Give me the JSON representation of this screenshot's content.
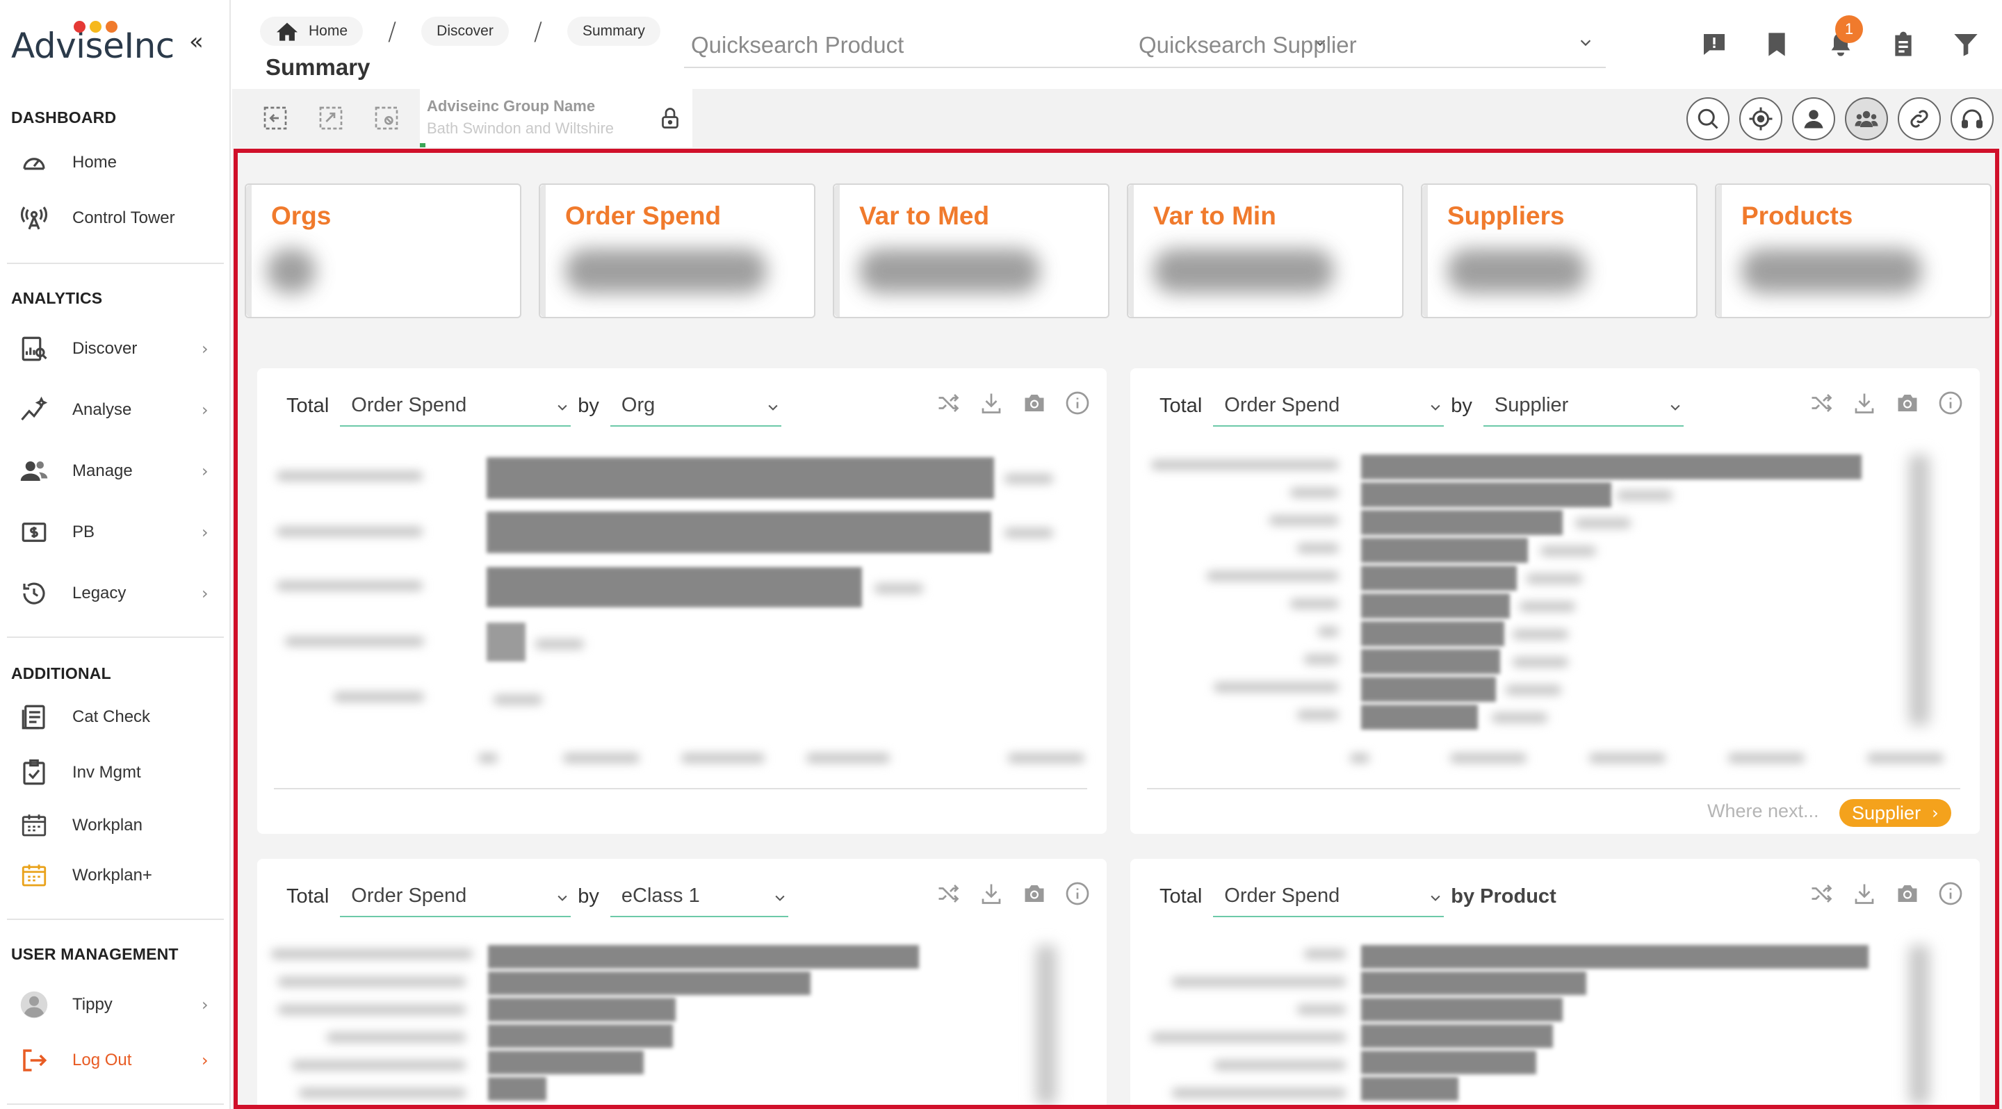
{
  "brand": {
    "name": "AdviseInc",
    "dot_colors": [
      "#e53935",
      "#f6b81c",
      "#f07a2c"
    ]
  },
  "sidebar": {
    "collapse_glyph": "«",
    "sections": {
      "dashboard": "DASHBOARD",
      "analytics": "ANALYTICS",
      "additional": "ADDITIONAL",
      "user_management": "USER MANAGEMENT"
    },
    "items": {
      "home": {
        "label": "Home",
        "icon": "gauge-icon"
      },
      "control_tower": {
        "label": "Control Tower",
        "icon": "antenna-icon"
      },
      "discover": {
        "label": "Discover",
        "icon": "chart-search-icon"
      },
      "analyse": {
        "label": "Analyse",
        "icon": "trend-sparkle-icon"
      },
      "manage": {
        "label": "Manage",
        "icon": "users-icon"
      },
      "pb": {
        "label": "PB",
        "icon": "dollar-box-icon"
      },
      "legacy": {
        "label": "Legacy",
        "icon": "history-icon"
      },
      "cat_check": {
        "label": "Cat Check",
        "icon": "catalogue-icon"
      },
      "inv_mgmt": {
        "label": "Inv Mgmt",
        "icon": "clipboard-check-icon"
      },
      "workplan": {
        "label": "Workplan",
        "icon": "calendar-icon"
      },
      "workplan_plus": {
        "label": "Workplan+",
        "icon": "calendar-plus-icon"
      },
      "tippy": {
        "label": "Tippy",
        "icon": "avatar-icon"
      },
      "logout": {
        "label": "Log Out",
        "icon": "logout-icon"
      }
    },
    "chevron": "›"
  },
  "header": {
    "breadcrumb": [
      "Home",
      "Discover",
      "Summary"
    ],
    "breadcrumb_sep": "/",
    "page_title": "Summary",
    "quicksearch_product": "Quicksearch Product",
    "quicksearch_supplier": "Quicksearch Supplier",
    "notification_count": "1",
    "group_label": "Adviseinc Group Name",
    "group_value": "Bath Swindon and Wiltshire",
    "accent_color": "#f07a2c"
  },
  "kpis": [
    "Orgs",
    "Order Spend",
    "Var to Med",
    "Var to Min",
    "Suppliers",
    "Products"
  ],
  "panels": {
    "org": {
      "total": "Total",
      "metric": "Order Spend",
      "by": "by",
      "dimension": "Org"
    },
    "supplier": {
      "total": "Total",
      "metric": "Order Spend",
      "by": "by",
      "dimension": "Supplier",
      "where_next": "Where next...",
      "next_target": "Supplier"
    },
    "eclass": {
      "total": "Total",
      "metric": "Order Spend",
      "by": "by",
      "dimension": "eClass 1"
    },
    "product": {
      "total": "Total",
      "metric": "Order Spend",
      "by_dimension": "by Product"
    }
  }
}
